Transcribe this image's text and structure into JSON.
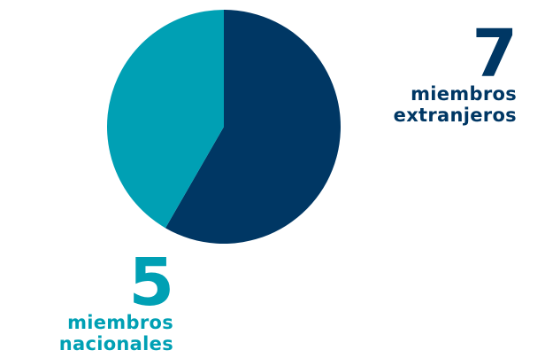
{
  "colors": {
    "extranjeros": "#003764",
    "nacionales": "#00a0b4"
  },
  "chart_data": {
    "type": "pie",
    "title": "",
    "start_angle_deg": 0,
    "direction": "clockwise",
    "slices": [
      {
        "key": "extranjeros",
        "value": 7,
        "number_label": "7",
        "label_lines": [
          "miembros",
          "extranjeros"
        ]
      },
      {
        "key": "nacionales",
        "value": 5,
        "number_label": "5",
        "label_lines": [
          "miembros",
          "nacionales"
        ]
      }
    ]
  }
}
